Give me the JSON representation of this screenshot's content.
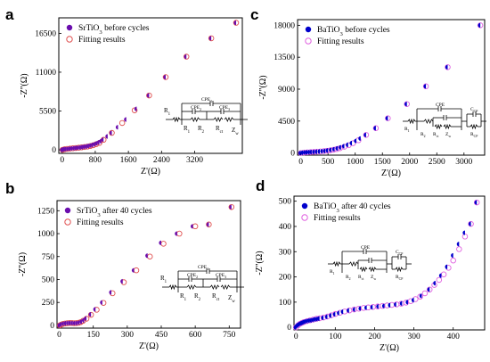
{
  "chart_data": [
    {
      "panel": "a",
      "type": "scatter",
      "xlabel": "Z'(Ω)",
      "ylabel": "-Z''(Ω)",
      "xlim": [
        -80,
        4350
      ],
      "ylim": [
        -500,
        18700
      ],
      "xticks": [
        0,
        800,
        1600,
        2400,
        3200
      ],
      "yticks": [
        0,
        5500,
        11000,
        16500
      ],
      "legend": [
        "SrTiO3 before cycles",
        "Fitting results"
      ],
      "legend_placement": "top-left",
      "colors": {
        "measured": "#6a0dad",
        "fit": "#e05050"
      },
      "circuit": {
        "labels": [
          "R1",
          "CPE2",
          "CPE1",
          "CPE3",
          "R1",
          "R2",
          "Rct",
          "Zw"
        ]
      },
      "series": [
        {
          "name": "SrTiO3 before cycles",
          "x": [
            5,
            30,
            60,
            100,
            150,
            200,
            250,
            300,
            350,
            400,
            450,
            500,
            550,
            600,
            650,
            700,
            750,
            800,
            850,
            900,
            950,
            1000,
            1100,
            1200,
            1350,
            1550,
            1800,
            2100,
            2500,
            3000,
            3600,
            4200
          ],
          "y": [
            0,
            40,
            80,
            110,
            140,
            170,
            200,
            230,
            270,
            300,
            340,
            380,
            430,
            480,
            540,
            610,
            700,
            800,
            920,
            1060,
            1230,
            1450,
            1900,
            2400,
            3200,
            4300,
            5800,
            7700,
            10300,
            13200,
            15800,
            18000
          ]
        },
        {
          "name": "Fitting results",
          "x": [
            10,
            60,
            120,
            190,
            260,
            330,
            400,
            470,
            540,
            610,
            680,
            750,
            820,
            900,
            1000,
            1200,
            1450,
            1750,
            2100,
            2500,
            3000,
            3600,
            4200
          ],
          "y": [
            0,
            80,
            130,
            180,
            220,
            260,
            300,
            345,
            400,
            460,
            540,
            650,
            790,
            980,
            1420,
            2400,
            3800,
            5600,
            7700,
            10300,
            13200,
            15800,
            18000
          ]
        }
      ]
    },
    {
      "panel": "b",
      "type": "scatter",
      "xlabel": "Z'(Ω)",
      "ylabel": "-Z''(Ω)",
      "xlim": [
        -10,
        800
      ],
      "ylim": [
        -30,
        1360
      ],
      "xticks": [
        0,
        150,
        300,
        450,
        600,
        750
      ],
      "yticks": [
        0,
        250,
        500,
        750,
        1000,
        1250
      ],
      "legend": [
        "SrTiO3 after 40 cycles",
        "Fitting results"
      ],
      "legend_placement": "top-left",
      "colors": {
        "measured": "#6a0dad",
        "fit": "#e05050"
      },
      "circuit": {
        "labels": [
          "R1",
          "CPE2",
          "CPE1",
          "CPE3",
          "R1",
          "R2",
          "Rct",
          "Zw"
        ]
      },
      "series": [
        {
          "name": "SrTiO3 after 40 cycles",
          "x": [
            2,
            10,
            20,
            30,
            40,
            50,
            60,
            70,
            80,
            90,
            100,
            110,
            120,
            140,
            160,
            190,
            230,
            280,
            330,
            390,
            450,
            520,
            590,
            660,
            760
          ],
          "y": [
            0,
            10,
            18,
            22,
            25,
            26,
            25,
            24,
            25,
            30,
            40,
            55,
            75,
            120,
            175,
            250,
            360,
            480,
            600,
            760,
            900,
            1000,
            1080,
            1100,
            1290
          ]
        },
        {
          "name": "Fitting results",
          "x": [
            2,
            8,
            15,
            25,
            35,
            45,
            55,
            65,
            75,
            85,
            95,
            105,
            120,
            140,
            165,
            195,
            235,
            285,
            340,
            400,
            460,
            530,
            600,
            660,
            760
          ],
          "y": [
            0,
            8,
            15,
            20,
            24,
            26,
            26,
            24,
            25,
            28,
            36,
            50,
            72,
            115,
            170,
            245,
            350,
            470,
            600,
            750,
            890,
            1000,
            1080,
            1100,
            1290
          ]
        }
      ]
    },
    {
      "panel": "c",
      "type": "scatter",
      "xlabel": "Z'(Ω)",
      "ylabel": "-Z''(Ω)",
      "xlim": [
        -60,
        3380
      ],
      "ylim": [
        -300,
        18800
      ],
      "xticks": [
        0,
        500,
        1000,
        1500,
        2000,
        2500,
        3000
      ],
      "yticks": [
        0,
        4500,
        9000,
        13500,
        18000
      ],
      "legend": [
        "BaTiO3 before cycles",
        "Fitting results"
      ],
      "legend_placement": "top-left",
      "colors": {
        "measured": "#0000cc",
        "fit": "#e060e0"
      },
      "circuit": {
        "labels": [
          "CPE",
          "CCP",
          "R1",
          "R2",
          "Rct",
          "Zw",
          "RCP"
        ]
      },
      "series": [
        {
          "name": "BaTiO3 before cycles",
          "x": [
            0,
            40,
            80,
            120,
            160,
            200,
            250,
            300,
            350,
            400,
            450,
            500,
            560,
            620,
            680,
            740,
            800,
            870,
            940,
            1020,
            1100,
            1200,
            1380,
            1600,
            1950,
            2300,
            2700,
            3300
          ],
          "y": [
            0,
            50,
            80,
            100,
            120,
            140,
            160,
            190,
            220,
            260,
            300,
            360,
            440,
            540,
            660,
            800,
            960,
            1160,
            1400,
            1700,
            2050,
            2550,
            3500,
            4900,
            6900,
            9400,
            12100,
            18000
          ]
        },
        {
          "name": "Fitting results",
          "x": [
            0,
            60,
            120,
            180,
            240,
            300,
            360,
            420,
            480,
            540,
            600,
            660,
            720,
            800,
            880,
            960,
            1060,
            1200,
            1380,
            1600,
            1950,
            2300,
            2700,
            3300
          ],
          "y": [
            0,
            60,
            100,
            130,
            160,
            190,
            225,
            265,
            320,
            380,
            460,
            560,
            680,
            880,
            1100,
            1380,
            1800,
            2550,
            3500,
            4900,
            6900,
            9400,
            12100,
            18000
          ]
        }
      ]
    },
    {
      "panel": "d",
      "type": "scatter",
      "xlabel": "Z'(Ω)",
      "ylabel": "-Z''(Ω)",
      "xlim": [
        -5,
        480
      ],
      "ylim": [
        -10,
        520
      ],
      "xticks": [
        0,
        100,
        200,
        300,
        400
      ],
      "yticks": [
        0,
        100,
        200,
        300,
        400,
        500
      ],
      "legend": [
        "BaTiO3 after 40 cycles",
        "Fitting results"
      ],
      "legend_placement": "top-left",
      "colors": {
        "measured": "#0000cc",
        "fit": "#e060e0"
      },
      "circuit": {
        "labels": [
          "CPE",
          "CCP",
          "R1",
          "R2",
          "Rct",
          "Zw",
          "RCP"
        ]
      },
      "series": [
        {
          "name": "BaTiO3 after 40 cycles",
          "x": [
            0,
            3,
            6,
            9,
            12,
            15,
            18,
            21,
            25,
            30,
            35,
            40,
            45,
            50,
            55,
            60,
            70,
            80,
            90,
            100,
            110,
            120,
            135,
            150,
            165,
            180,
            195,
            210,
            225,
            240,
            255,
            270,
            285,
            300,
            320,
            340,
            355,
            370,
            385,
            400,
            415,
            430,
            445,
            460
          ],
          "y": [
            0,
            5,
            9,
            12,
            15,
            17,
            19,
            21,
            23,
            25,
            27,
            28,
            30,
            32,
            33,
            35,
            38,
            42,
            47,
            52,
            57,
            62,
            67,
            71,
            75,
            78,
            80,
            83,
            85,
            88,
            91,
            95,
            100,
            108,
            125,
            150,
            175,
            205,
            240,
            285,
            330,
            375,
            410,
            495
          ]
        },
        {
          "name": "Fitting results",
          "x": [
            0,
            5,
            10,
            15,
            20,
            28,
            36,
            44,
            52,
            60,
            70,
            80,
            90,
            100,
            112,
            124,
            136,
            148,
            160,
            172,
            184,
            196,
            208,
            220,
            232,
            244,
            256,
            268,
            280,
            292,
            304,
            316,
            328,
            340,
            352,
            364,
            376,
            388,
            400,
            415,
            430,
            445,
            460
          ],
          "y": [
            0,
            8,
            14,
            18,
            21,
            25,
            28,
            31,
            34,
            36,
            39,
            43,
            48,
            53,
            58,
            63,
            67,
            71,
            74,
            77,
            79,
            81,
            83,
            85,
            87,
            89,
            91,
            94,
            98,
            104,
            112,
            122,
            135,
            150,
            168,
            188,
            210,
            236,
            265,
            310,
            360,
            410,
            495
          ]
        }
      ]
    }
  ]
}
